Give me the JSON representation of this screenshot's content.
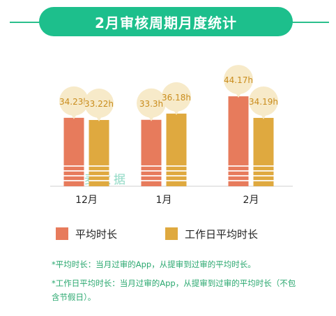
{
  "title": "2月审核周期月度统计",
  "colors": {
    "header": "#1dbf8c",
    "series_avg": "#e77b5c",
    "series_workday": "#dfa93f",
    "bubble": "#f7eac9",
    "bubble_text": "#c98c1c",
    "note": "#2aa86f"
  },
  "chart_data": {
    "type": "bar",
    "categories": [
      "12月",
      "1月",
      "2月"
    ],
    "series": [
      {
        "name": "平均时长",
        "values": [
          34.23,
          33.3,
          44.17
        ],
        "labels": [
          "34.23h",
          "33.3h",
          "44.17h"
        ]
      },
      {
        "name": "工作日平均时长",
        "values": [
          33.22,
          36.18,
          34.19
        ],
        "labels": [
          "33.22h",
          "36.18h",
          "34.19h"
        ]
      }
    ],
    "unit": "h",
    "legend_position": "bottom"
  },
  "legend": [
    {
      "label": "平均时长",
      "color": "#e77b5c"
    },
    {
      "label": "工作日平均时长",
      "color": "#dfa93f"
    }
  ],
  "notes": [
    "*平均时长：当月过审的App，从提审到过审的平均时长。",
    "*工作日平均时长：当月过审的App，从提审到过审的平均时长（不包含节假日）。"
  ],
  "watermark": "七麦数据"
}
